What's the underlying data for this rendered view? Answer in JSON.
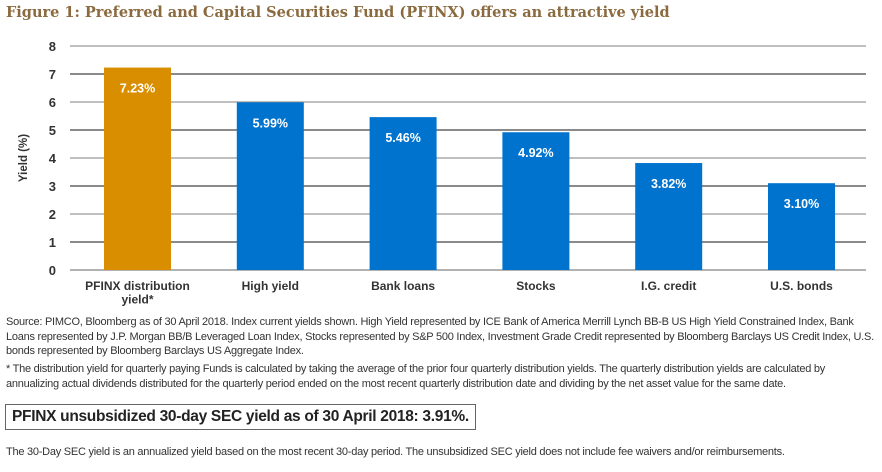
{
  "title": "Figure 1: Preferred and Capital Securities Fund (PFINX) offers an attractive yield",
  "chart_data": {
    "type": "bar",
    "title": "Figure 1: Preferred and Capital Securities Fund (PFINX) offers an attractive yield",
    "ylabel": "Yield (%)",
    "xlabel": "",
    "ylim": [
      0,
      8
    ],
    "yticks": [
      0,
      1,
      2,
      3,
      4,
      5,
      6,
      7,
      8
    ],
    "grid": true,
    "categories": [
      "PFINX distribution yield*",
      "High yield",
      "Bank loans",
      "Stocks",
      "I.G. credit",
      "U.S. bonds"
    ],
    "category_lines": [
      [
        "PFINX distribution",
        "yield*"
      ],
      [
        "High yield"
      ],
      [
        "Bank loans"
      ],
      [
        "Stocks"
      ],
      [
        "I.G. credit"
      ],
      [
        "U.S. bonds"
      ]
    ],
    "values": [
      7.23,
      5.99,
      5.46,
      4.92,
      3.82,
      3.1
    ],
    "data_labels": [
      "7.23%",
      "5.99%",
      "5.46%",
      "4.92%",
      "3.82%",
      "3.10%"
    ],
    "colors": [
      "#d98e00",
      "#0073cf",
      "#0073cf",
      "#0073cf",
      "#0073cf",
      "#0073cf"
    ]
  },
  "notes": {
    "source": "Source: PIMCO, Bloomberg as of 30 April 2018. Index current yields shown. High Yield represented by ICE Bank of America Merrill Lynch BB-B US High Yield Constrained Index, Bank Loans represented by J.P. Morgan BB/B Leveraged Loan Index, Stocks represented by S&P 500 Index, Investment Grade Credit represented by Bloomberg Barclays US Credit Index, U.S. bonds represented by Bloomberg Barclays US Aggregate Index.",
    "footnote": "* The distribution yield for quarterly paying Funds is calculated by taking the average of the prior four quarterly distribution yields. The quarterly distribution yields are calculated by annualizing actual dividends distributed for the quarterly period ended on the most recent quarterly distribution date and dividing by the net asset value for the same date.",
    "highlight": "PFINX unsubsidized 30-day SEC yield as of 30 April 2018: 3.91%.",
    "sec_note": "The 30-Day SEC yield is an annualized yield based on the most recent 30-day period. The unsubsidized SEC yield does not include fee waivers and/or reimbursements."
  }
}
